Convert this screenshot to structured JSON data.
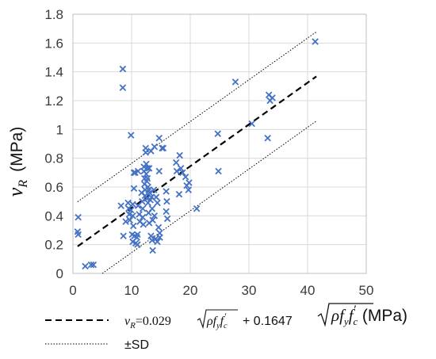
{
  "chart_data": {
    "type": "scatter",
    "title": "",
    "xlim": [
      0,
      50
    ],
    "ylim": [
      0,
      1.8
    ],
    "x_ticks": [
      "0",
      "10",
      "20",
      "30",
      "40",
      "50"
    ],
    "y_ticks": [
      "0",
      "0.2",
      "0.4",
      "0.6",
      "0.8",
      "1",
      "1.2",
      "1.4",
      "1.6",
      "1.8"
    ],
    "grid": true,
    "ylabel": {
      "symbol": "v",
      "subscript": "R",
      "unit": "(MPa)"
    },
    "xlabel": {
      "radicand": "ρf",
      "radicand_sub": "y",
      "radicand_f": "f",
      "radicand_f_sub": "c",
      "prime": "′",
      "unit": "(MPa)"
    },
    "marker": "x",
    "marker_color": "#4472c4",
    "fit": {
      "slope": 0.029,
      "intercept": 0.1647,
      "x_range": [
        0.8,
        41.5
      ],
      "style": "dashed"
    },
    "sd_band": {
      "offset": 0.31,
      "style": "dotted"
    },
    "legend": {
      "placement": "bottom",
      "fit_label": {
        "lhs": "v",
        "lhs_sub": "R",
        "eq": "=0.029",
        "tail": "+ 0.1647"
      },
      "sd_label": "±SD"
    },
    "points": [
      [
        0.8,
        0.29
      ],
      [
        0.9,
        0.27
      ],
      [
        0.9,
        0.39
      ],
      [
        2.1,
        0.05
      ],
      [
        3.1,
        0.06
      ],
      [
        3.5,
        0.06
      ],
      [
        8.5,
        1.42
      ],
      [
        8.5,
        1.29
      ],
      [
        8.2,
        0.47
      ],
      [
        8.6,
        0.26
      ],
      [
        9.0,
        0.36
      ],
      [
        9.4,
        0.49
      ],
      [
        9.5,
        0.45
      ],
      [
        9.6,
        0.41
      ],
      [
        9.7,
        0.37
      ],
      [
        9.9,
        0.44
      ],
      [
        9.9,
        0.96
      ],
      [
        10.1,
        0.27
      ],
      [
        10.2,
        0.22
      ],
      [
        10.2,
        0.4
      ],
      [
        10.2,
        0.48
      ],
      [
        10.3,
        0.33
      ],
      [
        10.4,
        0.7
      ],
      [
        10.4,
        0.59
      ],
      [
        10.5,
        0.26
      ],
      [
        10.6,
        0.7
      ],
      [
        10.7,
        0.21
      ],
      [
        10.9,
        0.25
      ],
      [
        11.0,
        0.2
      ],
      [
        11.0,
        0.27
      ],
      [
        11.1,
        0.71
      ],
      [
        11.1,
        0.47
      ],
      [
        11.3,
        0.41
      ],
      [
        11.4,
        0.36
      ],
      [
        11.7,
        0.56
      ],
      [
        11.8,
        0.5
      ],
      [
        11.9,
        0.45
      ],
      [
        11.9,
        0.39
      ],
      [
        12.0,
        0.34
      ],
      [
        12.1,
        0.74
      ],
      [
        12.1,
        0.71
      ],
      [
        12.2,
        0.66
      ],
      [
        12.2,
        0.62
      ],
      [
        12.3,
        0.58
      ],
      [
        12.3,
        0.54
      ],
      [
        12.4,
        0.87
      ],
      [
        12.4,
        0.84
      ],
      [
        12.5,
        0.76
      ],
      [
        12.5,
        0.69
      ],
      [
        12.6,
        0.64
      ],
      [
        12.6,
        0.52
      ],
      [
        12.7,
        0.73
      ],
      [
        12.7,
        0.66
      ],
      [
        12.8,
        0.6
      ],
      [
        12.8,
        0.49
      ],
      [
        12.9,
        0.58
      ],
      [
        12.9,
        0.42
      ],
      [
        13.0,
        0.73
      ],
      [
        13.0,
        0.35
      ],
      [
        13.1,
        0.56
      ],
      [
        13.2,
        0.51
      ],
      [
        13.3,
        0.85
      ],
      [
        13.3,
        0.26
      ],
      [
        13.4,
        0.53
      ],
      [
        13.5,
        0.45
      ],
      [
        13.5,
        0.23
      ],
      [
        13.6,
        0.16
      ],
      [
        13.6,
        0.37
      ],
      [
        13.8,
        0.58
      ],
      [
        13.9,
        0.88
      ],
      [
        13.9,
        0.4
      ],
      [
        14.1,
        0.24
      ],
      [
        14.2,
        0.53
      ],
      [
        14.4,
        0.49
      ],
      [
        14.4,
        0.22
      ],
      [
        14.6,
        0.32
      ],
      [
        14.7,
        0.94
      ],
      [
        14.7,
        0.71
      ],
      [
        14.8,
        0.28
      ],
      [
        14.8,
        0.25
      ],
      [
        15.2,
        0.87
      ],
      [
        15.4,
        0.87
      ],
      [
        15.9,
        0.57
      ],
      [
        15.9,
        0.43
      ],
      [
        16.0,
        0.5
      ],
      [
        16.1,
        0.38
      ],
      [
        17.6,
        0.77
      ],
      [
        17.7,
        0.71
      ],
      [
        18.1,
        0.55
      ],
      [
        18.2,
        0.82
      ],
      [
        18.4,
        0.73
      ],
      [
        18.7,
        0.7
      ],
      [
        19.2,
        0.67
      ],
      [
        19.4,
        0.61
      ],
      [
        19.7,
        0.58
      ],
      [
        19.8,
        0.63
      ],
      [
        21.1,
        0.45
      ],
      [
        24.7,
        0.97
      ],
      [
        24.8,
        0.71
      ],
      [
        27.7,
        1.33
      ],
      [
        30.5,
        1.04
      ],
      [
        33.2,
        0.94
      ],
      [
        33.4,
        1.24
      ],
      [
        33.6,
        1.2
      ],
      [
        34.0,
        1.22
      ],
      [
        41.3,
        1.61
      ]
    ]
  }
}
